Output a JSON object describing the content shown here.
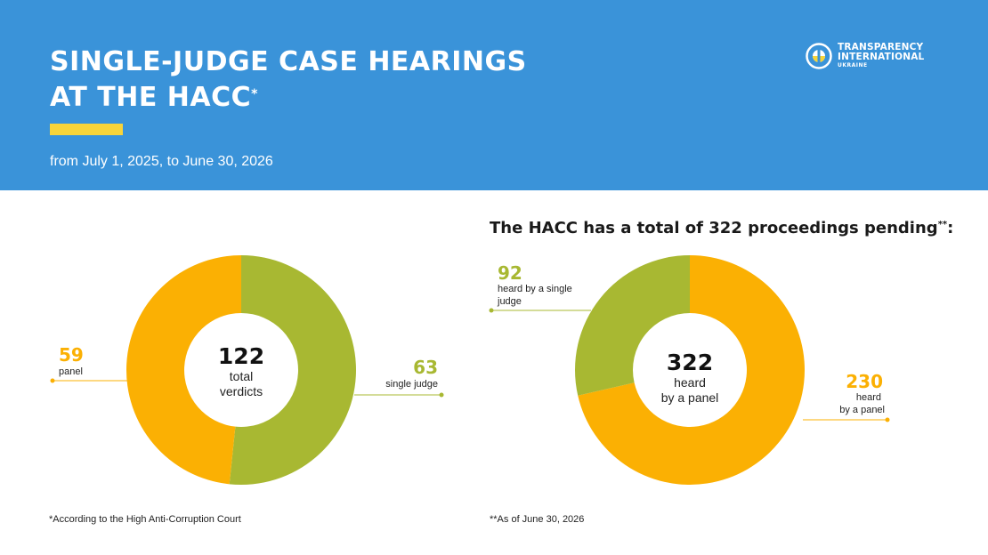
{
  "header": {
    "title_line1": "SINGLE-JUDGE CASE HEARINGS",
    "title_line2": "AT THE HACC",
    "title_mark": "*",
    "subtitle": "from July 1, 2025, to June 30, 2026",
    "logo": {
      "line1": "TRANSPARENCY",
      "line2": "INTERNATIONAL",
      "line3": "UKRAINE",
      "icon": "transparency-international-logo-icon"
    }
  },
  "right_heading": {
    "text": "The HACC has a total of 322 proceedings pending",
    "mark": "**",
    "tail": ":"
  },
  "colors": {
    "header_bg": "#3a93d9",
    "accent_yellow": "#f7d43a",
    "green": "#a8b832",
    "orange": "#fbb003"
  },
  "chart_data": [
    {
      "type": "pie",
      "center_value": "122",
      "center_label_line1": "total",
      "center_label_line2": "verdicts",
      "slices": [
        {
          "value": 63,
          "value_label": "63",
          "label": "single judge",
          "color": "#a8b832"
        },
        {
          "value": 59,
          "value_label": "59",
          "label": "panel",
          "color": "#fbb003"
        }
      ]
    },
    {
      "type": "pie",
      "center_value": "322",
      "center_label_line1": "heard",
      "center_label_line2": "by a panel",
      "slices": [
        {
          "value": 230,
          "value_label": "230",
          "label_line1": "heard",
          "label_line2": "by a panel",
          "color": "#fbb003"
        },
        {
          "value": 92,
          "value_label": "92",
          "label_line1": "heard by a single",
          "label_line2": "judge",
          "color": "#a8b832"
        }
      ]
    }
  ],
  "footnotes": {
    "left": "*According to the High Anti-Corruption Court",
    "right": "**As of June 30, 2026"
  }
}
